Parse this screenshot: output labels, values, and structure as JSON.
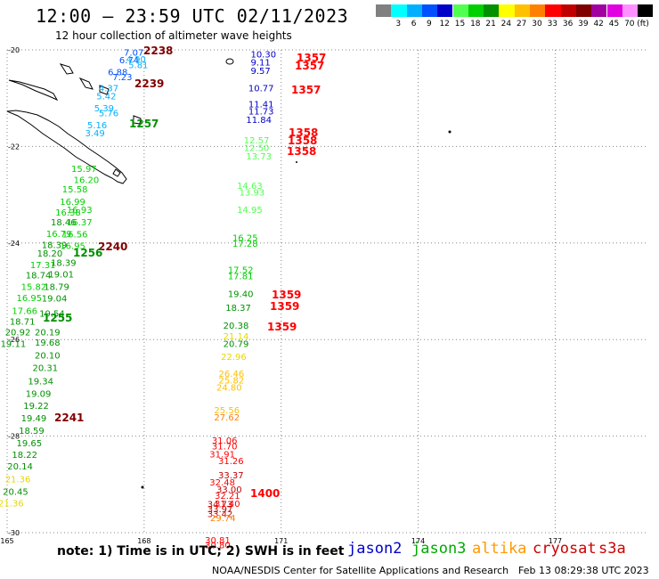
{
  "header": {
    "title": "12:00 – 23:59 UTC 02/11/2023",
    "subtitle": "12 hour collection of altimeter wave heights"
  },
  "footer": {
    "note": "note:  1) Time is in UTC;  2) SWH is in feet",
    "credit": "NOAA/NESDIS Center for Satellite Applications and Research",
    "generated": "Feb 13 08:29:38 UTC 2023"
  },
  "satellites": [
    {
      "name": "jason2",
      "color": "#0000cc"
    },
    {
      "name": "jason3",
      "color": "#00aa00"
    },
    {
      "name": "altika",
      "color": "#ff9900"
    },
    {
      "name": "cryosat",
      "color": "#cc0000"
    },
    {
      "name": "s3a",
      "color": "#cc0000"
    }
  ],
  "legend": {
    "unit": "(ft)",
    "bins": [
      {
        "label": "",
        "color": "#808080"
      },
      {
        "label": "3",
        "color": "#00ffff"
      },
      {
        "label": "6",
        "color": "#00b0ff"
      },
      {
        "label": "9",
        "color": "#0050ff"
      },
      {
        "label": "12",
        "color": "#0000c8"
      },
      {
        "label": "15",
        "color": "#50ff50"
      },
      {
        "label": "18",
        "color": "#00d000"
      },
      {
        "label": "21",
        "color": "#009000"
      },
      {
        "label": "24",
        "color": "#ffff00"
      },
      {
        "label": "27",
        "color": "#ffc000"
      },
      {
        "label": "30",
        "color": "#ff8000"
      },
      {
        "label": "33",
        "color": "#ff0000"
      },
      {
        "label": "36",
        "color": "#c00000"
      },
      {
        "label": "39",
        "color": "#800000"
      },
      {
        "label": "42",
        "color": "#a000a0"
      },
      {
        "label": "45",
        "color": "#e000e0"
      },
      {
        "label": "70",
        "color": "#ff90ff"
      },
      {
        "label": "",
        "color": "#000000"
      }
    ]
  },
  "chart_data": {
    "type": "scatter",
    "title": "12:00 – 23:59 UTC 02/11/2023",
    "subtitle": "12 hour collection of altimeter wave heights",
    "xlim": [
      165,
      179
    ],
    "ylim": [
      -30,
      -20
    ],
    "x_ticks": [
      165,
      168,
      171,
      174,
      177
    ],
    "y_ticks": [
      -20,
      -22,
      -24,
      -26,
      -28,
      -30
    ],
    "grid": true,
    "value_unit": "ft",
    "track_west": [
      {
        "lon": 167.75,
        "lat": -20.05,
        "v": 7.07
      },
      {
        "lon": 167.65,
        "lat": -20.2,
        "v": 6.74
      },
      {
        "lon": 167.8,
        "lat": -20.18,
        "v": 4.9
      },
      {
        "lon": 167.85,
        "lat": -20.3,
        "v": 5.81
      },
      {
        "lon": 167.4,
        "lat": -20.45,
        "v": 6.88
      },
      {
        "lon": 167.5,
        "lat": -20.55,
        "v": 7.23
      },
      {
        "lon": 167.2,
        "lat": -20.78,
        "v": 4.37
      },
      {
        "lon": 167.15,
        "lat": -20.95,
        "v": 5.42
      },
      {
        "lon": 167.1,
        "lat": -21.2,
        "v": 5.39
      },
      {
        "lon": 167.2,
        "lat": -21.3,
        "v": 5.76
      },
      {
        "lon": 166.95,
        "lat": -21.55,
        "v": 5.16
      },
      {
        "lon": 166.9,
        "lat": -21.72,
        "v": 3.49
      },
      {
        "lon": 166.6,
        "lat": -22.45,
        "v": 15.97
      },
      {
        "lon": 166.65,
        "lat": -22.68,
        "v": 16.2
      },
      {
        "lon": 166.4,
        "lat": -22.88,
        "v": 15.58
      },
      {
        "lon": 166.35,
        "lat": -23.14,
        "v": 16.99
      },
      {
        "lon": 166.5,
        "lat": -23.3,
        "v": 16.93
      },
      {
        "lon": 166.25,
        "lat": -23.36,
        "v": 16.38
      },
      {
        "lon": 166.15,
        "lat": -23.56,
        "v": 18.46
      },
      {
        "lon": 166.5,
        "lat": -23.56,
        "v": 16.37
      },
      {
        "lon": 166.05,
        "lat": -23.8,
        "v": 16.79
      },
      {
        "lon": 166.4,
        "lat": -23.81,
        "v": 16.56
      },
      {
        "lon": 165.95,
        "lat": -24.03,
        "v": 18.39
      },
      {
        "lon": 166.35,
        "lat": -24.05,
        "v": 16.95
      },
      {
        "lon": 165.85,
        "lat": -24.21,
        "v": 18.2
      },
      {
        "lon": 165.7,
        "lat": -24.45,
        "v": 17.31
      },
      {
        "lon": 166.15,
        "lat": -24.4,
        "v": 18.39
      },
      {
        "lon": 165.6,
        "lat": -24.66,
        "v": 18.74
      },
      {
        "lon": 166.1,
        "lat": -24.64,
        "v": 19.01
      },
      {
        "lon": 165.5,
        "lat": -24.9,
        "v": 15.82
      },
      {
        "lon": 166.0,
        "lat": -24.9,
        "v": 18.79
      },
      {
        "lon": 165.4,
        "lat": -25.13,
        "v": 16.95
      },
      {
        "lon": 165.95,
        "lat": -25.14,
        "v": 19.04
      },
      {
        "lon": 165.3,
        "lat": -25.4,
        "v": 17.66
      },
      {
        "lon": 165.9,
        "lat": -25.45,
        "v": 19.54
      },
      {
        "lon": 165.25,
        "lat": -25.62,
        "v": 18.71
      },
      {
        "lon": 165.15,
        "lat": -25.84,
        "v": 20.92
      },
      {
        "lon": 165.8,
        "lat": -25.84,
        "v": 20.19
      },
      {
        "lon": 165.05,
        "lat": -26.08,
        "v": 19.11
      },
      {
        "lon": 165.8,
        "lat": -26.05,
        "v": 19.68
      },
      {
        "lon": 165.8,
        "lat": -26.32,
        "v": 20.1
      },
      {
        "lon": 165.75,
        "lat": -26.58,
        "v": 20.31
      },
      {
        "lon": 165.65,
        "lat": -26.85,
        "v": 19.34
      },
      {
        "lon": 165.6,
        "lat": -27.11,
        "v": 19.09
      },
      {
        "lon": 165.55,
        "lat": -27.36,
        "v": 19.22
      },
      {
        "lon": 165.5,
        "lat": -27.62,
        "v": 19.49
      },
      {
        "lon": 165.45,
        "lat": -27.88,
        "v": 18.59
      },
      {
        "lon": 165.4,
        "lat": -28.14,
        "v": 19.65
      },
      {
        "lon": 165.3,
        "lat": -28.38,
        "v": 18.22
      },
      {
        "lon": 165.2,
        "lat": -28.62,
        "v": 20.14
      },
      {
        "lon": 165.15,
        "lat": -28.88,
        "v": 21.36
      },
      {
        "lon": 165.1,
        "lat": -29.14,
        "v": 20.45
      },
      {
        "lon": 165.0,
        "lat": -29.38,
        "v": 21.36
      }
    ],
    "track_east": [
      {
        "lon": 170.8,
        "lat": -20.08,
        "v": 10.3
      },
      {
        "lon": 170.8,
        "lat": -20.25,
        "v": 9.11
      },
      {
        "lon": 170.8,
        "lat": -20.42,
        "v": 9.57
      },
      {
        "lon": 170.75,
        "lat": -20.78,
        "v": 10.77
      },
      {
        "lon": 170.75,
        "lat": -21.12,
        "v": 11.41
      },
      {
        "lon": 170.75,
        "lat": -21.26,
        "v": 11.73
      },
      {
        "lon": 170.7,
        "lat": -21.44,
        "v": 11.84
      },
      {
        "lon": 170.65,
        "lat": -21.86,
        "v": 12.57
      },
      {
        "lon": 170.65,
        "lat": -22.02,
        "v": 12.5
      },
      {
        "lon": 170.7,
        "lat": -22.2,
        "v": 13.73
      },
      {
        "lon": 170.5,
        "lat": -22.8,
        "v": 14.63
      },
      {
        "lon": 170.55,
        "lat": -22.94,
        "v": 13.93
      },
      {
        "lon": 170.5,
        "lat": -23.3,
        "v": 14.95
      },
      {
        "lon": 170.4,
        "lat": -23.88,
        "v": 16.25
      },
      {
        "lon": 170.4,
        "lat": -24.0,
        "v": 17.28
      },
      {
        "lon": 170.3,
        "lat": -24.55,
        "v": 17.52
      },
      {
        "lon": 170.3,
        "lat": -24.68,
        "v": 17.81
      },
      {
        "lon": 170.3,
        "lat": -25.05,
        "v": 19.4
      },
      {
        "lon": 170.25,
        "lat": -25.33,
        "v": 18.37
      },
      {
        "lon": 170.2,
        "lat": -25.7,
        "v": 20.38
      },
      {
        "lon": 170.2,
        "lat": -25.92,
        "v": 21.14
      },
      {
        "lon": 170.2,
        "lat": -26.08,
        "v": 20.79
      },
      {
        "lon": 170.15,
        "lat": -26.35,
        "v": 22.96
      },
      {
        "lon": 170.1,
        "lat": -26.7,
        "v": 26.46
      },
      {
        "lon": 170.1,
        "lat": -26.84,
        "v": 25.82
      },
      {
        "lon": 170.05,
        "lat": -26.98,
        "v": 24.8
      },
      {
        "lon": 170.0,
        "lat": -27.45,
        "v": 25.56
      },
      {
        "lon": 170.0,
        "lat": -27.6,
        "v": 27.62
      },
      {
        "lon": 169.95,
        "lat": -28.08,
        "v": 31.06
      },
      {
        "lon": 169.95,
        "lat": -28.2,
        "v": 31.7
      },
      {
        "lon": 169.9,
        "lat": -28.37,
        "v": 31.91
      },
      {
        "lon": 169.9,
        "lat": -28.95,
        "v": 32.48
      },
      {
        "lon": 169.85,
        "lat": -29.4,
        "v": 34.73
      },
      {
        "lon": 169.85,
        "lat": -29.5,
        "v": 33.97
      },
      {
        "lon": 169.85,
        "lat": -29.6,
        "v": 33.42
      },
      {
        "lon": 169.8,
        "lat": -30.15,
        "v": 30.81
      },
      {
        "lon": 169.8,
        "lat": -30.25,
        "v": 30.8
      }
    ],
    "track_east_south": [
      {
        "x": 245,
        "y": 521,
        "v": 31.26
      },
      {
        "x": 245,
        "y": 537,
        "v": 33.37
      },
      {
        "x": 243,
        "y": 553,
        "v": 33.0
      },
      {
        "x": 241,
        "y": 560,
        "v": 32.21
      },
      {
        "x": 241,
        "y": 569,
        "v": 31.4
      },
      {
        "x": 236,
        "y": 585,
        "v": 29.74
      }
    ],
    "time_labels": [
      {
        "text": "2238",
        "x": 161,
        "y": 57,
        "color": "#800000"
      },
      {
        "text": "2239",
        "x": 151,
        "y": 94,
        "color": "#800000"
      },
      {
        "text": "1257",
        "x": 145,
        "y": 139,
        "color": "#009000"
      },
      {
        "text": "2240",
        "x": 110,
        "y": 277,
        "color": "#800000"
      },
      {
        "text": "1256",
        "x": 82,
        "y": 284,
        "color": "#009000"
      },
      {
        "text": "1255",
        "x": 48,
        "y": 357,
        "color": "#009000"
      },
      {
        "text": "2241",
        "x": 61,
        "y": 469,
        "color": "#800000"
      },
      {
        "text": "1357",
        "x": 333,
        "y": 65,
        "color": "#ff0000"
      },
      {
        "text": "1357",
        "x": 331,
        "y": 74,
        "color": "#ff0000"
      },
      {
        "text": "1357",
        "x": 327,
        "y": 101,
        "color": "#ff0000"
      },
      {
        "text": "1358",
        "x": 324,
        "y": 149,
        "color": "#ff0000"
      },
      {
        "text": "1358",
        "x": 323,
        "y": 158,
        "color": "#ff0000"
      },
      {
        "text": "1358",
        "x": 322,
        "y": 170,
        "color": "#ff0000"
      },
      {
        "text": "1359",
        "x": 305,
        "y": 331,
        "color": "#ff0000"
      },
      {
        "text": "1359",
        "x": 303,
        "y": 344,
        "color": "#ff0000"
      },
      {
        "text": "1359",
        "x": 300,
        "y": 367,
        "color": "#ff0000"
      },
      {
        "text": "1400",
        "x": 281,
        "y": 554,
        "color": "#ff0000"
      }
    ]
  }
}
